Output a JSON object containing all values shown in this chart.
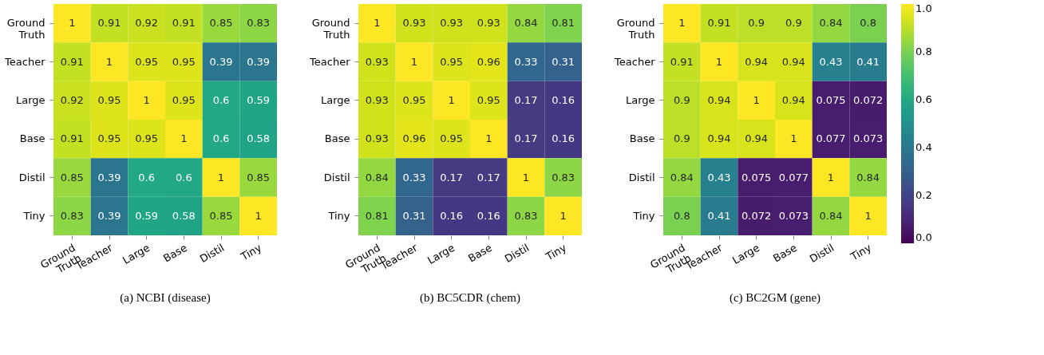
{
  "chart_data": [
    {
      "type": "heatmap",
      "title": "(a) NCBI (disease)",
      "categories": [
        "Ground Truth",
        "Teacher",
        "Large",
        "Base",
        "Distil",
        "Tiny"
      ],
      "y_categories": [
        "Ground Truth",
        "Teacher",
        "Large",
        "Base",
        "Distil",
        "Tiny"
      ],
      "data_labels": true,
      "cells": [
        [
          1,
          0.91,
          0.92,
          0.91,
          0.85,
          0.83
        ],
        [
          0.91,
          1,
          0.95,
          0.95,
          0.39,
          0.39
        ],
        [
          0.92,
          0.95,
          1,
          0.95,
          0.6,
          0.59
        ],
        [
          0.91,
          0.95,
          0.95,
          1,
          0.6,
          0.58
        ],
        [
          0.85,
          0.39,
          0.6,
          0.6,
          1,
          0.85
        ],
        [
          0.83,
          0.39,
          0.59,
          0.58,
          0.85,
          1
        ]
      ]
    },
    {
      "type": "heatmap",
      "title": "(b) BC5CDR (chem)",
      "categories": [
        "Ground Truth",
        "Teacher",
        "Large",
        "Base",
        "Distil",
        "Tiny"
      ],
      "y_categories": [
        "Ground Truth",
        "Teacher",
        "Large",
        "Base",
        "Distil",
        "Tiny"
      ],
      "data_labels": true,
      "cells": [
        [
          1,
          0.93,
          0.93,
          0.93,
          0.84,
          0.81
        ],
        [
          0.93,
          1,
          0.95,
          0.96,
          0.33,
          0.31
        ],
        [
          0.93,
          0.95,
          1,
          0.95,
          0.17,
          0.16
        ],
        [
          0.93,
          0.96,
          0.95,
          1,
          0.17,
          0.16
        ],
        [
          0.84,
          0.33,
          0.17,
          0.17,
          1,
          0.83
        ],
        [
          0.81,
          0.31,
          0.16,
          0.16,
          0.83,
          1
        ]
      ]
    },
    {
      "type": "heatmap",
      "title": "(c) BC2GM (gene)",
      "categories": [
        "Ground Truth",
        "Teacher",
        "Large",
        "Base",
        "Distil",
        "Tiny"
      ],
      "y_categories": [
        "Ground Truth",
        "Teacher",
        "Large",
        "Base",
        "Distil",
        "Tiny"
      ],
      "data_labels": true,
      "cells": [
        [
          1,
          0.91,
          0.9,
          0.9,
          0.84,
          0.8
        ],
        [
          0.91,
          1,
          0.94,
          0.94,
          0.43,
          0.41
        ],
        [
          0.9,
          0.94,
          1,
          0.94,
          0.075,
          0.072
        ],
        [
          0.9,
          0.94,
          0.94,
          1,
          0.077,
          0.073
        ],
        [
          0.84,
          0.43,
          0.075,
          0.077,
          1,
          0.84
        ],
        [
          0.8,
          0.41,
          0.072,
          0.073,
          0.84,
          1
        ]
      ],
      "clim": [
        0,
        1
      ],
      "cticks": [
        {
          "value": 0,
          "label": "0.0"
        },
        {
          "value": 0.2,
          "label": "0.2"
        },
        {
          "value": 0.4,
          "label": "0.4"
        },
        {
          "value": 0.6,
          "label": "0.6"
        },
        {
          "value": 0.8,
          "label": "0.8"
        },
        {
          "value": 1,
          "label": "1.0"
        }
      ]
    }
  ]
}
